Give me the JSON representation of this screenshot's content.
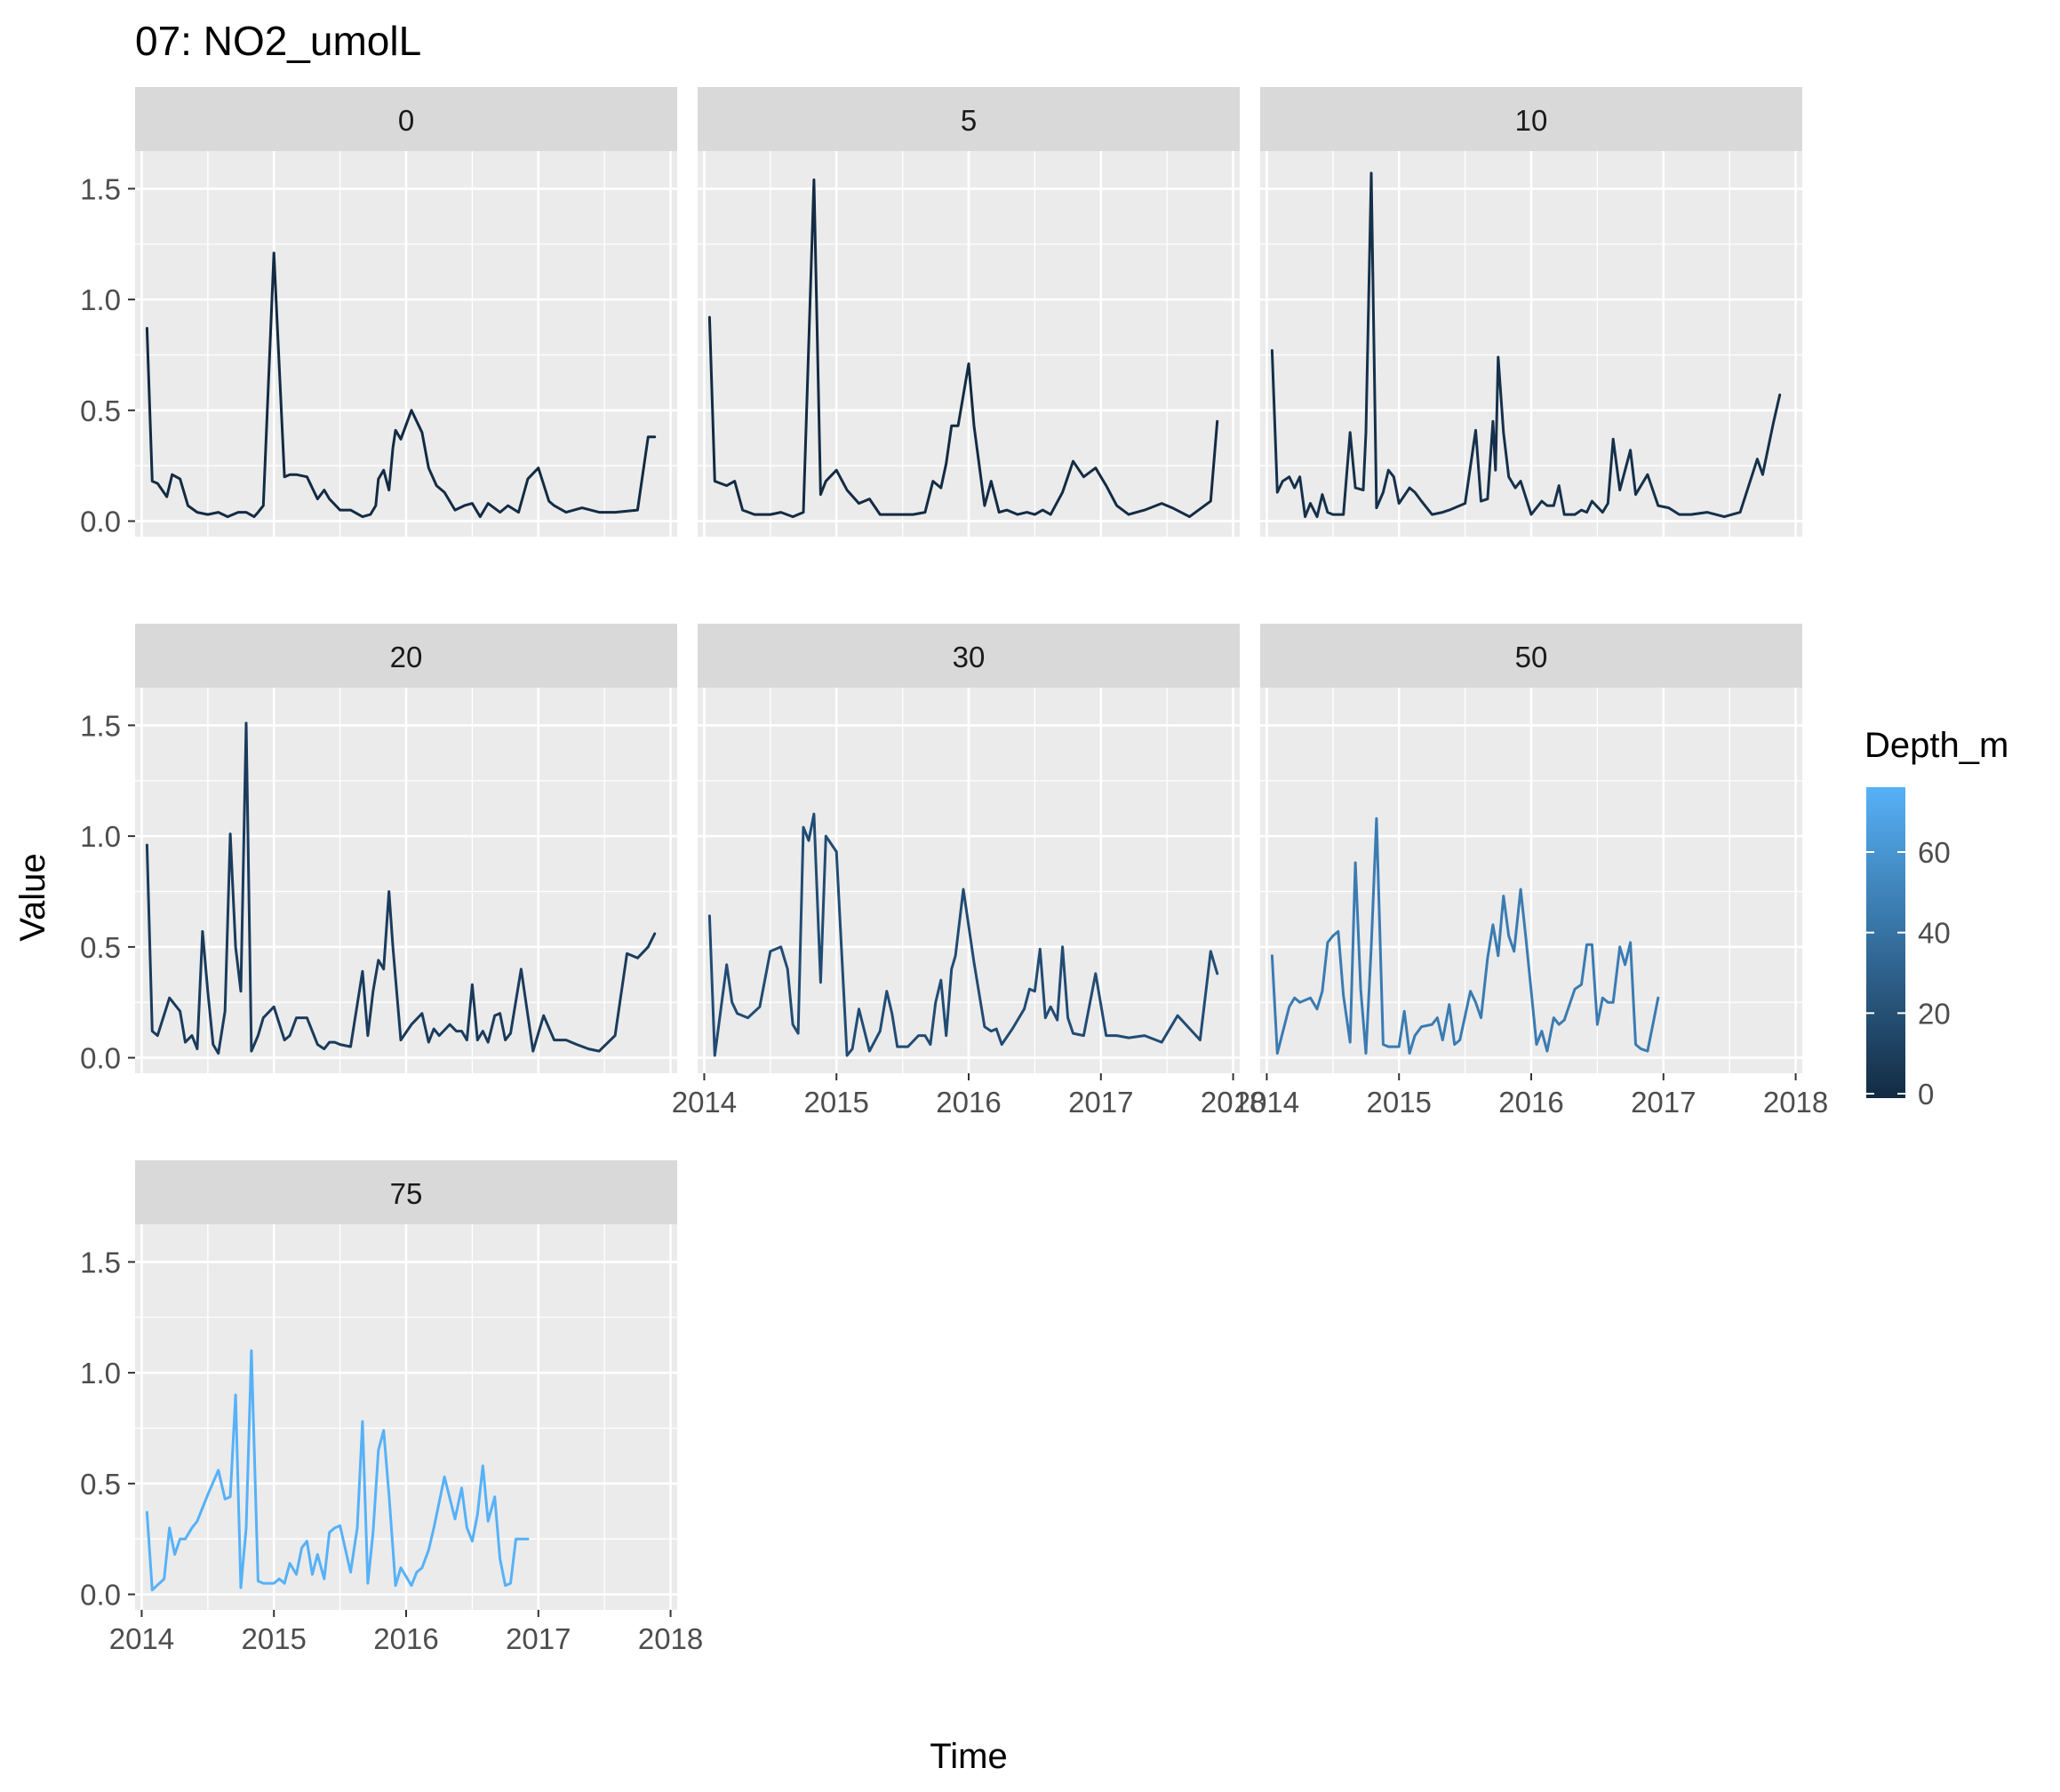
{
  "chart_data": {
    "type": "line",
    "title": "07: NO2_umolL",
    "xlabel": "Time",
    "ylabel": "Value",
    "xlim": [
      2013.95,
      2018.05
    ],
    "ylim": [
      -0.07,
      1.67
    ],
    "x_ticks": [
      2014,
      2015,
      2016,
      2017,
      2018
    ],
    "y_ticks": [
      0.0,
      0.5,
      1.0,
      1.5
    ],
    "y_tick_labels": [
      "0.0",
      "0.5",
      "1.0",
      "1.5"
    ],
    "grid": true,
    "legend": {
      "title": "Depth_m",
      "placement": "right",
      "type": "colorbar",
      "range": [
        0,
        75
      ],
      "ticks": [
        0,
        20,
        40,
        60
      ],
      "colors": [
        "#132B43",
        "#56B1F7"
      ]
    },
    "panels": [
      {
        "label": "0",
        "depth": 0,
        "color": "#132B43",
        "x": [
          2014.04,
          2014.08,
          2014.12,
          2014.19,
          2014.23,
          2014.29,
          2014.35,
          2014.42,
          2014.5,
          2014.58,
          2014.65,
          2014.73,
          2014.79,
          2014.85,
          2014.88,
          2014.92,
          2015.0,
          2015.08,
          2015.12,
          2015.17,
          2015.25,
          2015.33,
          2015.38,
          2015.42,
          2015.5,
          2015.58,
          2015.67,
          2015.73,
          2015.77,
          2015.79,
          2015.83,
          2015.87,
          2015.9,
          2015.92,
          2015.96,
          2016.04,
          2016.12,
          2016.17,
          2016.23,
          2016.29,
          2016.37,
          2016.44,
          2016.5,
          2016.56,
          2016.62,
          2016.71,
          2016.77,
          2016.85,
          2016.92,
          2017.0,
          2017.08,
          2017.12,
          2017.21,
          2017.33,
          2017.46,
          2017.58,
          2017.75,
          2017.83,
          2017.88
        ],
        "y": [
          0.87,
          0.18,
          0.17,
          0.11,
          0.21,
          0.19,
          0.07,
          0.04,
          0.03,
          0.04,
          0.02,
          0.04,
          0.04,
          0.02,
          0.04,
          0.07,
          1.21,
          0.2,
          0.21,
          0.21,
          0.2,
          0.1,
          0.14,
          0.1,
          0.05,
          0.05,
          0.02,
          0.03,
          0.07,
          0.19,
          0.23,
          0.14,
          0.33,
          0.41,
          0.37,
          0.5,
          0.4,
          0.24,
          0.16,
          0.13,
          0.05,
          0.07,
          0.08,
          0.02,
          0.08,
          0.04,
          0.07,
          0.04,
          0.19,
          0.24,
          0.09,
          0.07,
          0.04,
          0.06,
          0.04,
          0.04,
          0.05,
          0.38,
          0.38
        ]
      },
      {
        "label": "5",
        "depth": 5,
        "color": "#132B43",
        "x": [
          2014.04,
          2014.08,
          2014.17,
          2014.23,
          2014.29,
          2014.38,
          2014.5,
          2014.58,
          2014.67,
          2014.75,
          2014.83,
          2014.88,
          2014.92,
          2015.0,
          2015.08,
          2015.17,
          2015.25,
          2015.33,
          2015.42,
          2015.5,
          2015.58,
          2015.67,
          2015.73,
          2015.79,
          2015.83,
          2015.87,
          2015.92,
          2016.0,
          2016.04,
          2016.12,
          2016.17,
          2016.23,
          2016.29,
          2016.37,
          2016.44,
          2016.5,
          2016.56,
          2016.62,
          2016.71,
          2016.79,
          2016.87,
          2016.96,
          2017.04,
          2017.12,
          2017.21,
          2017.33,
          2017.46,
          2017.54,
          2017.67,
          2017.83,
          2017.88
        ],
        "y": [
          0.92,
          0.18,
          0.16,
          0.18,
          0.05,
          0.03,
          0.03,
          0.04,
          0.02,
          0.04,
          1.54,
          0.12,
          0.18,
          0.23,
          0.14,
          0.08,
          0.1,
          0.03,
          0.03,
          0.03,
          0.03,
          0.04,
          0.18,
          0.15,
          0.26,
          0.43,
          0.43,
          0.71,
          0.43,
          0.07,
          0.18,
          0.04,
          0.05,
          0.03,
          0.04,
          0.03,
          0.05,
          0.03,
          0.13,
          0.27,
          0.2,
          0.24,
          0.16,
          0.07,
          0.03,
          0.05,
          0.08,
          0.06,
          0.02,
          0.09,
          0.45
        ]
      },
      {
        "label": "10",
        "depth": 10,
        "color": "#15304A",
        "x": [
          2014.04,
          2014.08,
          2014.12,
          2014.17,
          2014.21,
          2014.25,
          2014.29,
          2014.33,
          2014.38,
          2014.42,
          2014.46,
          2014.5,
          2014.54,
          2014.58,
          2014.63,
          2014.67,
          2014.73,
          2014.75,
          2014.79,
          2014.83,
          2014.88,
          2014.92,
          2014.96,
          2015.0,
          2015.08,
          2015.12,
          2015.17,
          2015.25,
          2015.33,
          2015.38,
          2015.42,
          2015.5,
          2015.58,
          2015.62,
          2015.67,
          2015.71,
          2015.73,
          2015.75,
          2015.79,
          2015.83,
          2015.88,
          2015.92,
          2016.0,
          2016.08,
          2016.12,
          2016.17,
          2016.21,
          2016.25,
          2016.33,
          2016.38,
          2016.42,
          2016.46,
          2016.54,
          2016.58,
          2016.62,
          2016.67,
          2016.75,
          2016.79,
          2016.88,
          2016.96,
          2017.04,
          2017.12,
          2017.21,
          2017.33,
          2017.46,
          2017.58,
          2017.71,
          2017.75,
          2017.83,
          2017.88
        ],
        "y": [
          0.77,
          0.13,
          0.18,
          0.2,
          0.15,
          0.2,
          0.02,
          0.08,
          0.02,
          0.12,
          0.04,
          0.03,
          0.03,
          0.03,
          0.4,
          0.15,
          0.14,
          0.4,
          1.57,
          0.06,
          0.13,
          0.23,
          0.2,
          0.08,
          0.15,
          0.13,
          0.09,
          0.03,
          0.04,
          0.05,
          0.06,
          0.08,
          0.41,
          0.09,
          0.1,
          0.45,
          0.23,
          0.74,
          0.4,
          0.2,
          0.15,
          0.18,
          0.03,
          0.09,
          0.07,
          0.07,
          0.16,
          0.03,
          0.03,
          0.05,
          0.04,
          0.09,
          0.04,
          0.08,
          0.37,
          0.14,
          0.32,
          0.12,
          0.21,
          0.07,
          0.06,
          0.03,
          0.03,
          0.04,
          0.02,
          0.04,
          0.28,
          0.21,
          0.44,
          0.57
        ]
      },
      {
        "label": "20",
        "depth": 20,
        "color": "#1A3B5C",
        "x": [
          2014.04,
          2014.08,
          2014.12,
          2014.21,
          2014.29,
          2014.33,
          2014.38,
          2014.42,
          2014.46,
          2014.5,
          2014.54,
          2014.58,
          2014.63,
          2014.67,
          2014.71,
          2014.75,
          2014.79,
          2014.83,
          2014.88,
          2014.92,
          2015.0,
          2015.08,
          2015.12,
          2015.17,
          2015.25,
          2015.33,
          2015.38,
          2015.42,
          2015.46,
          2015.5,
          2015.58,
          2015.67,
          2015.71,
          2015.75,
          2015.79,
          2015.83,
          2015.87,
          2015.9,
          2015.96,
          2016.04,
          2016.12,
          2016.17,
          2016.21,
          2016.25,
          2016.33,
          2016.38,
          2016.42,
          2016.46,
          2016.5,
          2016.54,
          2016.58,
          2016.62,
          2016.67,
          2016.71,
          2016.75,
          2016.79,
          2016.87,
          2016.96,
          2017.04,
          2017.12,
          2017.21,
          2017.29,
          2017.38,
          2017.46,
          2017.58,
          2017.67,
          2017.75,
          2017.83,
          2017.88
        ],
        "y": [
          0.96,
          0.12,
          0.1,
          0.27,
          0.21,
          0.07,
          0.1,
          0.04,
          0.57,
          0.3,
          0.06,
          0.02,
          0.21,
          1.01,
          0.5,
          0.3,
          1.51,
          0.03,
          0.1,
          0.18,
          0.23,
          0.08,
          0.1,
          0.18,
          0.18,
          0.06,
          0.04,
          0.07,
          0.07,
          0.06,
          0.05,
          0.39,
          0.1,
          0.3,
          0.44,
          0.4,
          0.75,
          0.5,
          0.08,
          0.15,
          0.2,
          0.07,
          0.13,
          0.1,
          0.15,
          0.12,
          0.12,
          0.08,
          0.33,
          0.08,
          0.12,
          0.07,
          0.19,
          0.2,
          0.08,
          0.11,
          0.4,
          0.03,
          0.19,
          0.08,
          0.08,
          0.06,
          0.04,
          0.03,
          0.1,
          0.47,
          0.45,
          0.5,
          0.56
        ]
      },
      {
        "label": "30",
        "depth": 30,
        "color": "#214B73",
        "x": [
          2014.04,
          2014.08,
          2014.17,
          2014.21,
          2014.25,
          2014.33,
          2014.42,
          2014.5,
          2014.58,
          2014.63,
          2014.67,
          2014.71,
          2014.75,
          2014.79,
          2014.83,
          2014.88,
          2014.92,
          2015.0,
          2015.08,
          2015.12,
          2015.17,
          2015.25,
          2015.33,
          2015.38,
          2015.42,
          2015.46,
          2015.54,
          2015.62,
          2015.67,
          2015.71,
          2015.75,
          2015.79,
          2015.83,
          2015.87,
          2015.9,
          2015.96,
          2016.04,
          2016.12,
          2016.17,
          2016.21,
          2016.25,
          2016.33,
          2016.42,
          2016.46,
          2016.5,
          2016.54,
          2016.58,
          2016.62,
          2016.67,
          2016.71,
          2016.75,
          2016.79,
          2016.87,
          2016.96,
          2017.04,
          2017.12,
          2017.21,
          2017.33,
          2017.46,
          2017.58,
          2017.75,
          2017.83,
          2017.88
        ],
        "y": [
          0.64,
          0.01,
          0.42,
          0.25,
          0.2,
          0.18,
          0.23,
          0.48,
          0.5,
          0.4,
          0.15,
          0.11,
          1.04,
          0.98,
          1.1,
          0.34,
          1.0,
          0.93,
          0.01,
          0.04,
          0.22,
          0.03,
          0.12,
          0.3,
          0.2,
          0.05,
          0.05,
          0.1,
          0.1,
          0.06,
          0.25,
          0.35,
          0.1,
          0.4,
          0.46,
          0.76,
          0.43,
          0.14,
          0.12,
          0.13,
          0.06,
          0.13,
          0.22,
          0.31,
          0.3,
          0.49,
          0.18,
          0.23,
          0.17,
          0.5,
          0.18,
          0.11,
          0.1,
          0.38,
          0.1,
          0.1,
          0.09,
          0.1,
          0.07,
          0.19,
          0.08,
          0.48,
          0.38
        ]
      },
      {
        "label": "50",
        "depth": 50,
        "color": "#3A7BB2",
        "x": [
          2014.04,
          2014.08,
          2014.17,
          2014.21,
          2014.25,
          2014.33,
          2014.38,
          2014.42,
          2014.46,
          2014.5,
          2014.54,
          2014.58,
          2014.63,
          2014.67,
          2014.71,
          2014.75,
          2014.79,
          2014.83,
          2014.88,
          2014.92,
          2015.0,
          2015.04,
          2015.08,
          2015.12,
          2015.17,
          2015.25,
          2015.29,
          2015.33,
          2015.38,
          2015.42,
          2015.46,
          2015.54,
          2015.58,
          2015.62,
          2015.67,
          2015.71,
          2015.75,
          2015.79,
          2015.83,
          2015.87,
          2015.92,
          2015.96,
          2016.04,
          2016.08,
          2016.12,
          2016.17,
          2016.21,
          2016.25,
          2016.33,
          2016.38,
          2016.42,
          2016.46,
          2016.5,
          2016.54,
          2016.58,
          2016.62,
          2016.67,
          2016.71,
          2016.75,
          2016.79,
          2016.83,
          2016.88,
          2016.92,
          2016.96
        ],
        "y": [
          0.46,
          0.02,
          0.23,
          0.27,
          0.25,
          0.27,
          0.22,
          0.3,
          0.52,
          0.55,
          0.57,
          0.28,
          0.07,
          0.88,
          0.31,
          0.02,
          0.5,
          1.08,
          0.06,
          0.05,
          0.05,
          0.21,
          0.02,
          0.1,
          0.14,
          0.15,
          0.18,
          0.08,
          0.24,
          0.06,
          0.08,
          0.3,
          0.25,
          0.18,
          0.45,
          0.6,
          0.46,
          0.73,
          0.55,
          0.48,
          0.76,
          0.54,
          0.06,
          0.12,
          0.03,
          0.18,
          0.15,
          0.17,
          0.31,
          0.33,
          0.51,
          0.51,
          0.15,
          0.27,
          0.25,
          0.25,
          0.5,
          0.42,
          0.52,
          0.06,
          0.04,
          0.03,
          0.15,
          0.27
        ]
      },
      {
        "label": "75",
        "depth": 75,
        "color": "#56B1F7",
        "x": [
          2014.04,
          2014.08,
          2014.17,
          2014.21,
          2014.25,
          2014.29,
          2014.33,
          2014.38,
          2014.42,
          2014.5,
          2014.58,
          2014.63,
          2014.67,
          2014.71,
          2014.75,
          2014.79,
          2014.83,
          2014.88,
          2014.92,
          2015.0,
          2015.04,
          2015.08,
          2015.12,
          2015.17,
          2015.21,
          2015.25,
          2015.29,
          2015.33,
          2015.38,
          2015.42,
          2015.46,
          2015.5,
          2015.58,
          2015.63,
          2015.67,
          2015.71,
          2015.75,
          2015.79,
          2015.83,
          2015.87,
          2015.92,
          2015.96,
          2016.04,
          2016.08,
          2016.12,
          2016.17,
          2016.21,
          2016.29,
          2016.37,
          2016.42,
          2016.46,
          2016.5,
          2016.54,
          2016.58,
          2016.62,
          2016.67,
          2016.71,
          2016.75,
          2016.79,
          2016.83,
          2016.88,
          2016.92
        ],
        "y": [
          0.37,
          0.02,
          0.07,
          0.3,
          0.18,
          0.25,
          0.25,
          0.3,
          0.33,
          0.45,
          0.56,
          0.43,
          0.44,
          0.9,
          0.03,
          0.3,
          1.1,
          0.06,
          0.05,
          0.05,
          0.07,
          0.05,
          0.14,
          0.09,
          0.21,
          0.24,
          0.09,
          0.18,
          0.07,
          0.28,
          0.3,
          0.31,
          0.1,
          0.3,
          0.78,
          0.05,
          0.28,
          0.65,
          0.74,
          0.45,
          0.04,
          0.12,
          0.04,
          0.1,
          0.12,
          0.2,
          0.3,
          0.53,
          0.34,
          0.48,
          0.3,
          0.24,
          0.36,
          0.58,
          0.33,
          0.44,
          0.16,
          0.04,
          0.05,
          0.25,
          0.25,
          0.25
        ]
      }
    ]
  }
}
